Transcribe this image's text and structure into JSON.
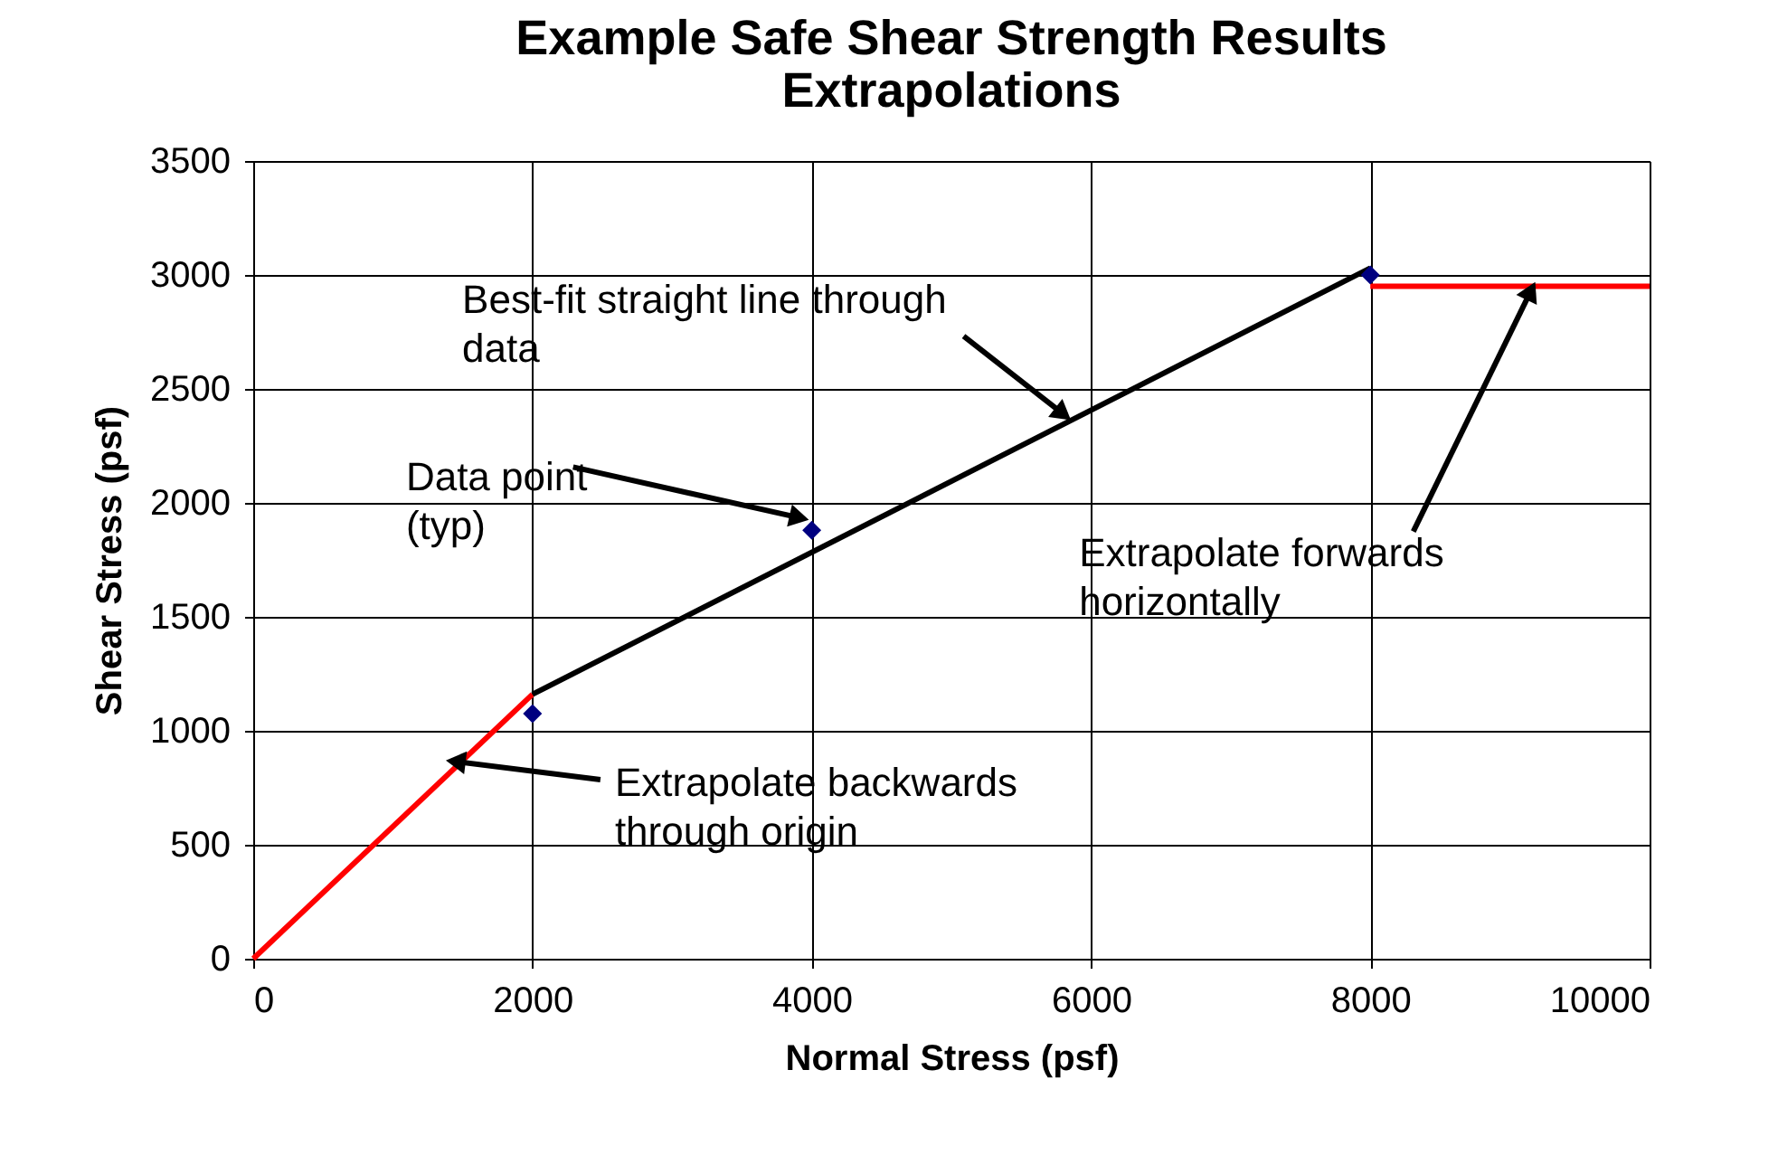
{
  "chart_data": {
    "type": "line",
    "title": [
      "Example Safe Shear Strength Results",
      "Extrapolations"
    ],
    "xlabel": "Normal Stress (psf)",
    "ylabel": "Shear Stress (psf)",
    "xlim": [
      0,
      10000
    ],
    "xticks": [
      0,
      2000,
      4000,
      6000,
      8000,
      10000
    ],
    "ylim": [
      0,
      3500
    ],
    "yticks": [
      0,
      500,
      1000,
      1500,
      2000,
      2500,
      3000,
      3500
    ],
    "grid": true,
    "series": [
      {
        "color": "#ff0000",
        "x": [
          0,
          2000
        ],
        "values": [
          0,
          1160
        ],
        "marker": "none"
      },
      {
        "color": "#000000",
        "x": [
          2000,
          8000
        ],
        "values": [
          1160,
          3030
        ],
        "marker": "none"
      },
      {
        "color": "#ff0000",
        "x": [
          8000,
          10000
        ],
        "values": [
          2950,
          2950
        ],
        "marker": "none"
      },
      {
        "type": "scatter",
        "color": "#000080",
        "x": [
          2000,
          4000,
          8000
        ],
        "values": [
          1075,
          1880,
          3000
        ],
        "marker": "diamond"
      }
    ],
    "annotations": [
      {
        "text": "Best-fit straight line through data",
        "x": 5800,
        "y": 2390
      },
      {
        "text": "Data point (typ)",
        "x": 3910,
        "y": 1935
      },
      {
        "text": "Extrapolate forwards horizontally",
        "x": 9150,
        "y": 2930
      },
      {
        "text": "Extrapolate backwards through origin",
        "x": 1450,
        "y": 865
      }
    ]
  }
}
